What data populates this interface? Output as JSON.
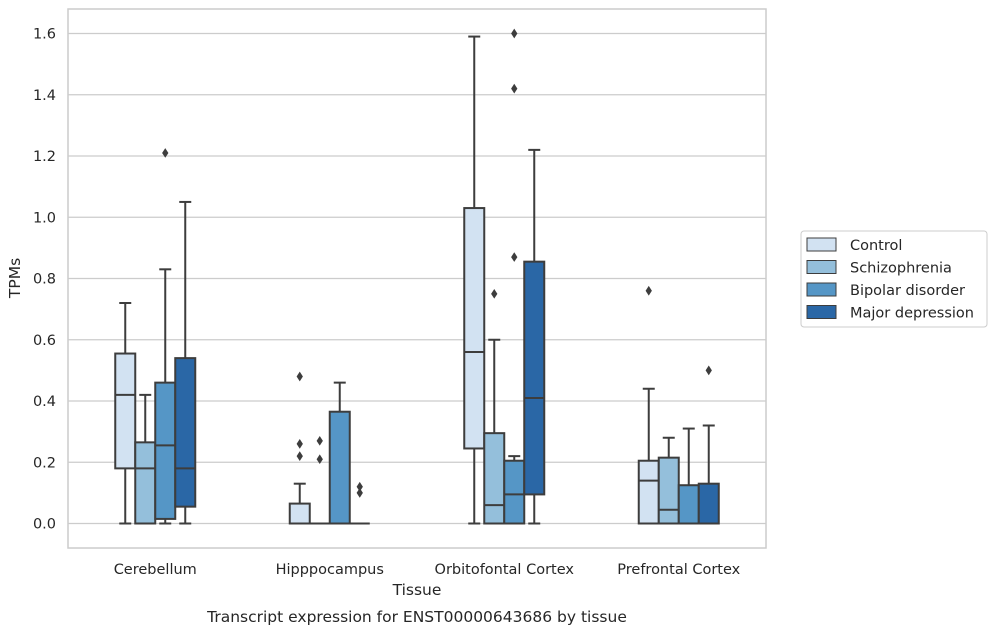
{
  "caption": "Transcript expression for ENST00000643686 by tissue",
  "chart_data": {
    "type": "box",
    "xlabel": "Tissue",
    "ylabel": "TPMs",
    "ylim": [
      -0.08,
      1.68
    ],
    "yticks": [
      "0.0",
      "0.2",
      "0.4",
      "0.6",
      "0.8",
      "1.0",
      "1.2",
      "1.4",
      "1.6"
    ],
    "grid": "horizontal",
    "legend_position": "right",
    "categories": [
      "Cerebellum",
      "Hipppocampus",
      "Orbitofontal Cortex",
      "Prefrontal Cortex"
    ],
    "series": [
      {
        "name": "Control",
        "color": "#d2e2f2",
        "boxes": [
          {
            "whislo": 0.0,
            "q1": 0.18,
            "med": 0.42,
            "q3": 0.555,
            "whishi": 0.72,
            "fliers": []
          },
          {
            "whislo": 0.0,
            "q1": 0.0,
            "med": 0.0,
            "q3": 0.065,
            "whishi": 0.13,
            "fliers": [
              0.22,
              0.26,
              0.48
            ]
          },
          {
            "whislo": 0.0,
            "q1": 0.245,
            "med": 0.56,
            "q3": 1.03,
            "whishi": 1.59,
            "fliers": []
          },
          {
            "whislo": 0.0,
            "q1": 0.0,
            "med": 0.14,
            "q3": 0.205,
            "whishi": 0.44,
            "fliers": [
              0.76
            ]
          }
        ]
      },
      {
        "name": "Schizophrenia",
        "color": "#94bfdb",
        "boxes": [
          {
            "whislo": 0.0,
            "q1": 0.0,
            "med": 0.18,
            "q3": 0.265,
            "whishi": 0.42,
            "fliers": []
          },
          {
            "whislo": 0.0,
            "q1": 0.0,
            "med": 0.0,
            "q3": 0.0,
            "whishi": 0.0,
            "fliers": [
              0.21,
              0.27
            ]
          },
          {
            "whislo": 0.0,
            "q1": 0.0,
            "med": 0.06,
            "q3": 0.295,
            "whishi": 0.6,
            "fliers": [
              0.75
            ]
          },
          {
            "whislo": 0.0,
            "q1": 0.0,
            "med": 0.045,
            "q3": 0.215,
            "whishi": 0.28,
            "fliers": []
          }
        ]
      },
      {
        "name": "Bipolar disorder",
        "color": "#5596c6",
        "boxes": [
          {
            "whislo": 0.0,
            "q1": 0.015,
            "med": 0.255,
            "q3": 0.46,
            "whishi": 0.83,
            "fliers": [
              1.21
            ]
          },
          {
            "whislo": 0.0,
            "q1": 0.0,
            "med": 0.0,
            "q3": 0.365,
            "whishi": 0.46,
            "fliers": []
          },
          {
            "whislo": 0.0,
            "q1": 0.0,
            "med": 0.095,
            "q3": 0.205,
            "whishi": 0.22,
            "fliers": [
              0.87,
              1.42,
              1.6
            ]
          },
          {
            "whislo": 0.0,
            "q1": 0.0,
            "med": 0.0,
            "q3": 0.125,
            "whishi": 0.31,
            "fliers": []
          }
        ]
      },
      {
        "name": "Major depression",
        "color": "#2a67a6",
        "boxes": [
          {
            "whislo": 0.0,
            "q1": 0.055,
            "med": 0.18,
            "q3": 0.54,
            "whishi": 1.05,
            "fliers": []
          },
          {
            "whislo": 0.0,
            "q1": 0.0,
            "med": 0.0,
            "q3": 0.0,
            "whishi": 0.0,
            "fliers": [
              0.1,
              0.12
            ]
          },
          {
            "whislo": 0.0,
            "q1": 0.095,
            "med": 0.41,
            "q3": 0.855,
            "whishi": 1.22,
            "fliers": []
          },
          {
            "whislo": 0.0,
            "q1": 0.0,
            "med": 0.0,
            "q3": 0.13,
            "whishi": 0.32,
            "fliers": [
              0.5
            ]
          }
        ]
      }
    ]
  }
}
